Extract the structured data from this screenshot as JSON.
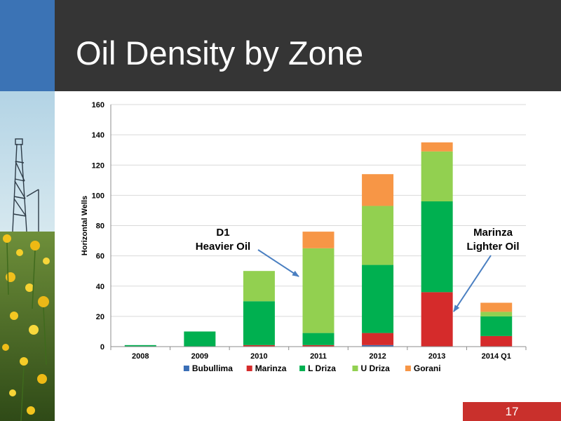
{
  "slide": {
    "title": "Oil Density by Zone",
    "slide_number": "17"
  },
  "colors": {
    "header_background": "#353535",
    "header_accent": "#3b73b5",
    "slide_number_background": "#c9302c"
  },
  "chart_data": {
    "type": "bar",
    "stacked": true,
    "categories": [
      "2008",
      "2009",
      "2010",
      "2011",
      "2012",
      "2013",
      "2014 Q1"
    ],
    "series": [
      {
        "name": "Bubullima",
        "color": "#3a6eb6",
        "values": [
          0,
          0,
          0,
          0,
          1,
          0,
          0
        ]
      },
      {
        "name": "Marinza",
        "color": "#d52b2b",
        "values": [
          0,
          0,
          1,
          1,
          8,
          36,
          7
        ]
      },
      {
        "name": "L Driza",
        "color": "#00b050",
        "values": [
          1,
          10,
          29,
          8,
          45,
          60,
          13
        ]
      },
      {
        "name": "U Driza",
        "color": "#92d050",
        "values": [
          0,
          0,
          20,
          56,
          39,
          33,
          3
        ]
      },
      {
        "name": "Gorani",
        "color": "#f79646",
        "values": [
          0,
          0,
          0,
          11,
          21,
          6,
          6
        ]
      }
    ],
    "title": "",
    "xlabel": "",
    "ylabel": "Horizontal Wells",
    "ylim": [
      0,
      160
    ],
    "yticks": [
      0,
      20,
      40,
      60,
      80,
      100,
      120,
      140,
      160
    ],
    "grid": true,
    "legend_position": "bottom",
    "annotations": [
      {
        "lines": [
          "D1",
          "Heavier Oil"
        ],
        "points_to": "2011"
      },
      {
        "lines": [
          "Marinza",
          "Lighter Oil"
        ],
        "points_to": "2013"
      }
    ]
  }
}
